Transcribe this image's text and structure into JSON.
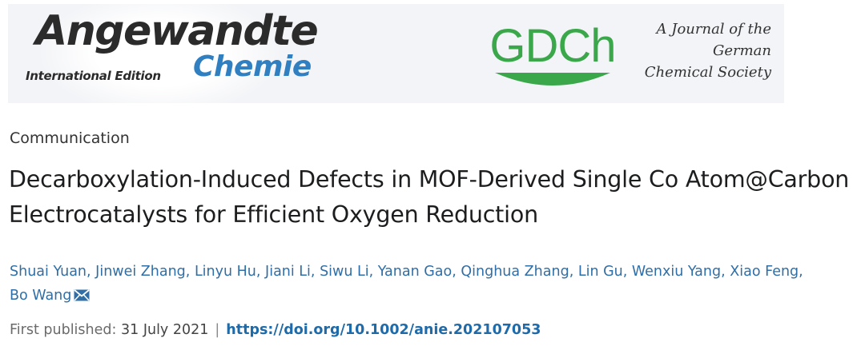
{
  "banner": {
    "journal_title": "Angewandte",
    "journal_subtitle": "Chemie",
    "edition": "International Edition",
    "society_logo": "GDCh",
    "society_tagline": [
      "A Journal of the",
      "German",
      "Chemical Society"
    ],
    "colors": {
      "chemie_blue": "#2f7fc1",
      "gdch_green": "#3aa84a",
      "banner_bg": "#f3f4f7"
    }
  },
  "article": {
    "type": "Communication",
    "title": "Decarboxylation-Induced Defects in MOF-Derived Single Co Atom@Carbon Electrocatalysts for Efficient Oxygen Reduction",
    "authors": [
      "Shuai Yuan",
      "Jinwei Zhang",
      "Linyu Hu",
      "Jiani Li",
      "Siwu Li",
      "Yanan Gao",
      "Qinghua Zhang",
      "Lin Gu",
      "Wenxiu Yang",
      "Xiao Feng",
      "Bo Wang"
    ],
    "corresponding_icon": "envelope-icon",
    "published_label": "First published:",
    "published_date": "31 July 2021",
    "separator": "|",
    "doi": "https://doi.org/10.1002/anie.202107053",
    "colors": {
      "link": "#2f6ea6",
      "title": "#1c1d1e"
    }
  }
}
